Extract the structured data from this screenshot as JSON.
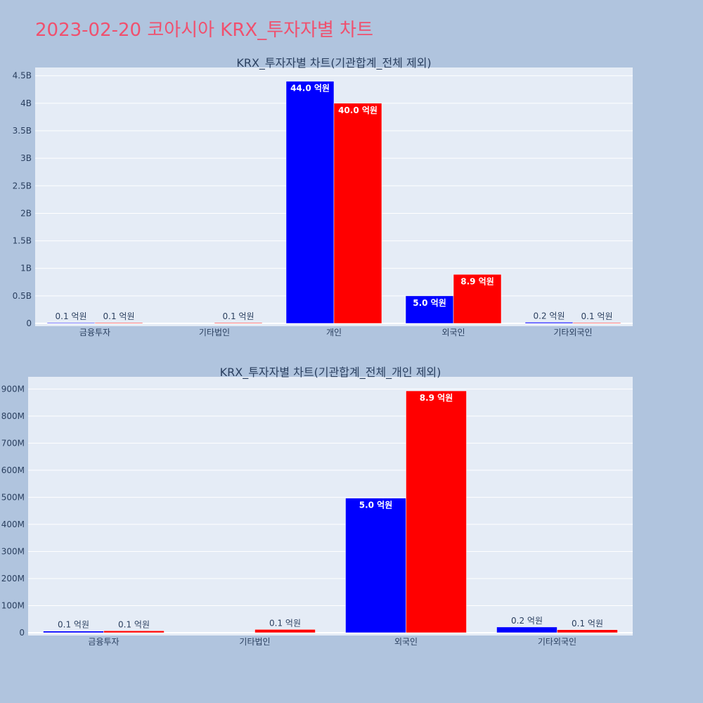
{
  "title": "2023-02-20 코아시아 KRX_투자자별 차트",
  "colors": {
    "buy": "#0000ff",
    "sell": "#ff0000",
    "plot_bg": "#e5ecf6",
    "page_bg": "#b0c4de",
    "title": "#f0506e"
  },
  "chart_data": [
    {
      "type": "bar",
      "title": "KRX_투자자별 차트(기관합계_전체 제외)",
      "categories": [
        "금융투자",
        "기타법인",
        "개인",
        "외국인",
        "기타외국인"
      ],
      "ylim": [
        0,
        4650000000
      ],
      "yticks": [
        0,
        500000000,
        1000000000,
        1500000000,
        2000000000,
        2500000000,
        3000000000,
        3500000000,
        4000000000,
        4500000000
      ],
      "ytick_labels": [
        "0",
        "0.5B",
        "1B",
        "1.5B",
        "2B",
        "2.5B",
        "3B",
        "3.5B",
        "4B",
        "4.5B"
      ],
      "series": [
        {
          "color": "#0000ff",
          "values": [
            10000000,
            0,
            4400000000,
            500000000,
            20000000
          ],
          "labels": [
            "0.1 억원",
            "",
            "44.0 억원",
            "5.0 억원",
            "0.2 억원"
          ]
        },
        {
          "color": "#ff0000",
          "values": [
            10000000,
            10000000,
            4000000000,
            890000000,
            10000000
          ],
          "labels": [
            "0.1 억원",
            "0.1 억원",
            "40.0 억원",
            "8.9 억원",
            "0.1 억원"
          ]
        }
      ]
    },
    {
      "type": "bar",
      "title": "KRX_투자자별 차트(기관합계_전체_개인 제외)",
      "categories": [
        "금융투자",
        "기타법인",
        "외국인",
        "기타외국인"
      ],
      "ylim": [
        0,
        945000000
      ],
      "yticks": [
        0,
        100000000,
        200000000,
        300000000,
        400000000,
        500000000,
        600000000,
        700000000,
        800000000,
        900000000
      ],
      "ytick_labels": [
        "0",
        "100M",
        "200M",
        "300M",
        "400M",
        "500M",
        "600M",
        "700M",
        "800M",
        "900M"
      ],
      "series": [
        {
          "color": "#0000ff",
          "values": [
            6000000,
            0,
            497000000,
            21000000
          ],
          "labels": [
            "0.1 억원",
            "",
            "5.0 억원",
            "0.2 억원"
          ]
        },
        {
          "color": "#ff0000",
          "values": [
            7000000,
            12000000,
            893000000,
            11000000
          ],
          "labels": [
            "0.1 억원",
            "0.1 억원",
            "8.9 억원",
            "0.1 억원"
          ]
        }
      ]
    }
  ]
}
